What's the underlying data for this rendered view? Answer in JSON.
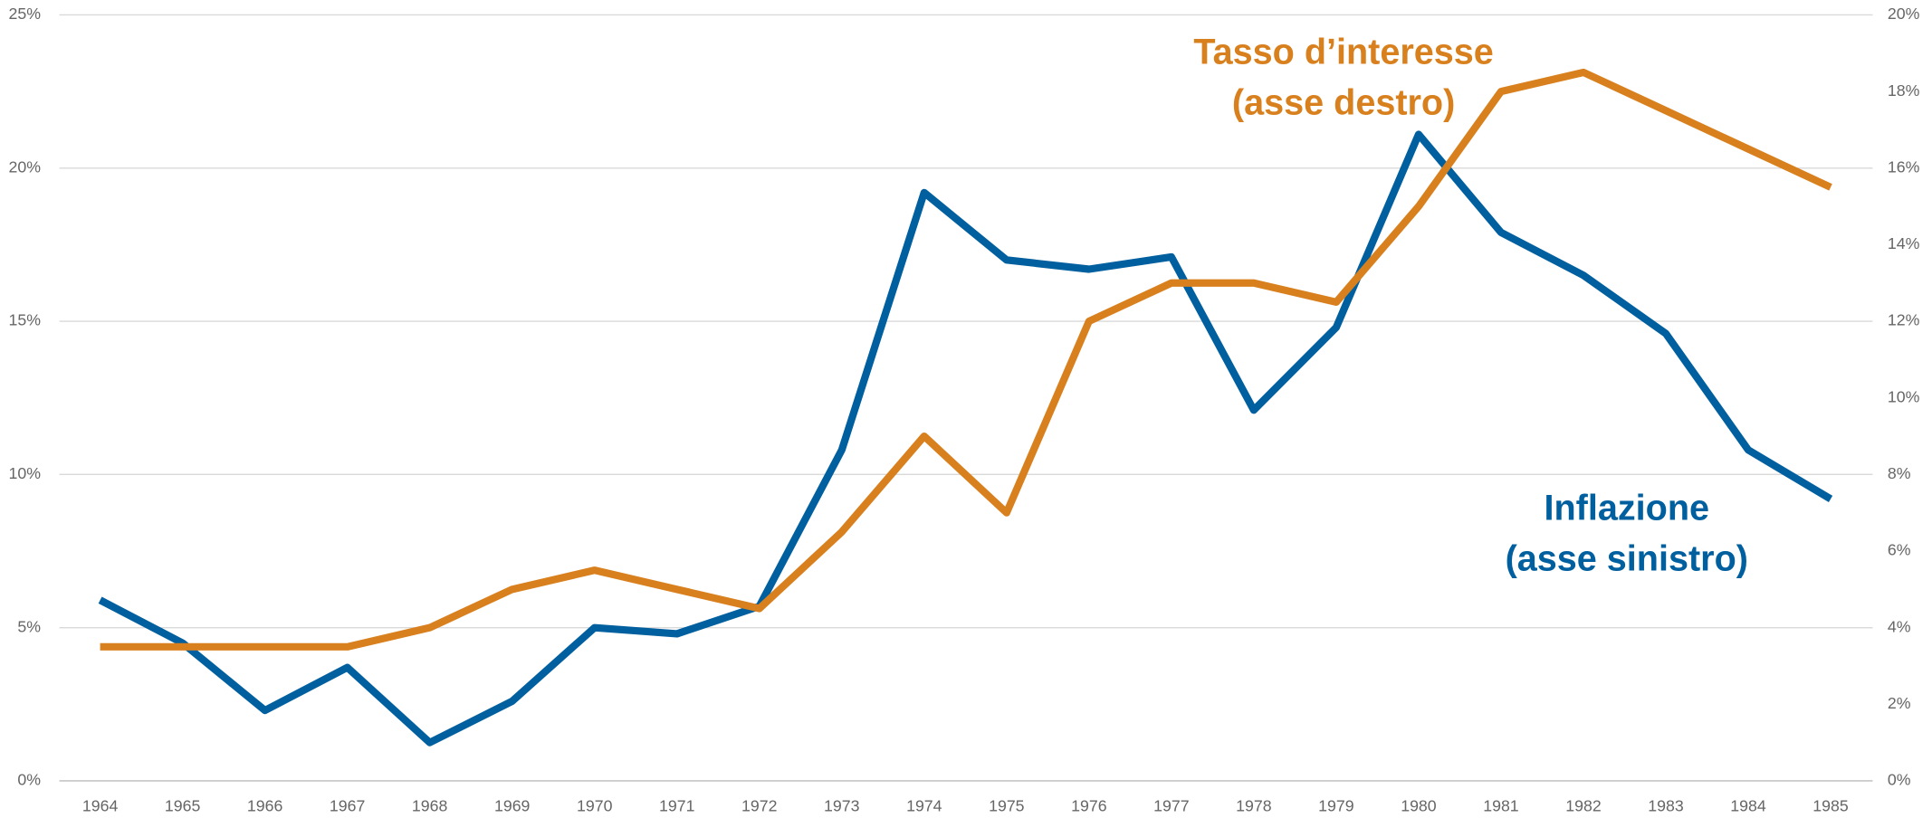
{
  "chart_data": {
    "type": "line",
    "x": [
      "1964",
      "1965",
      "1966",
      "1967",
      "1968",
      "1969",
      "1970",
      "1971",
      "1972",
      "1973",
      "1974",
      "1975",
      "1976",
      "1977",
      "1978",
      "1979",
      "1980",
      "1981",
      "1982",
      "1983",
      "1984",
      "1985"
    ],
    "series": [
      {
        "color": "#005f9e",
        "axis": "y",
        "values": [
          5.9,
          4.5,
          2.3,
          3.7,
          1.25,
          2.6,
          5.0,
          4.8,
          5.7,
          10.8,
          19.2,
          17.0,
          16.7,
          17.1,
          12.1,
          14.8,
          21.1,
          17.9,
          16.5,
          14.6,
          10.8,
          9.2
        ]
      },
      {
        "color": "#d9801e",
        "axis": "y2",
        "values": [
          3.5,
          3.5,
          3.5,
          3.5,
          4.0,
          5.0,
          5.5,
          5.0,
          4.5,
          6.5,
          9.0,
          7.0,
          12.0,
          13.0,
          13.0,
          12.5,
          15.0,
          18.0,
          18.5,
          17.5,
          16.5,
          15.5
        ]
      }
    ],
    "ylim": [
      0,
      25
    ],
    "yticks": [
      {
        "value": 0,
        "label": "0%"
      },
      {
        "value": 5,
        "label": "5%"
      },
      {
        "value": 10,
        "label": "10%"
      },
      {
        "value": 15,
        "label": "15%"
      },
      {
        "value": 20,
        "label": "20%"
      },
      {
        "value": 25,
        "label": "25%"
      }
    ],
    "y2lim": [
      0,
      20
    ],
    "y2ticks": [
      {
        "value": 0,
        "label": "0%"
      },
      {
        "value": 2,
        "label": "2%"
      },
      {
        "value": 4,
        "label": "4%"
      },
      {
        "value": 6,
        "label": "6%"
      },
      {
        "value": 8,
        "label": "8%"
      },
      {
        "value": 10,
        "label": "10%"
      },
      {
        "value": 12,
        "label": "12%"
      },
      {
        "value": 14,
        "label": "14%"
      },
      {
        "value": 16,
        "label": "16%"
      },
      {
        "value": 18,
        "label": "18%"
      },
      {
        "value": 20,
        "label": "20%"
      }
    ],
    "grid": true,
    "annotations": [
      {
        "lines": [
          "Tasso d’interesse",
          "(asse destro)"
        ],
        "color": "#d9801e"
      },
      {
        "lines": [
          "Inflazione",
          "(asse sinistro)"
        ],
        "color": "#005f9e"
      }
    ]
  }
}
